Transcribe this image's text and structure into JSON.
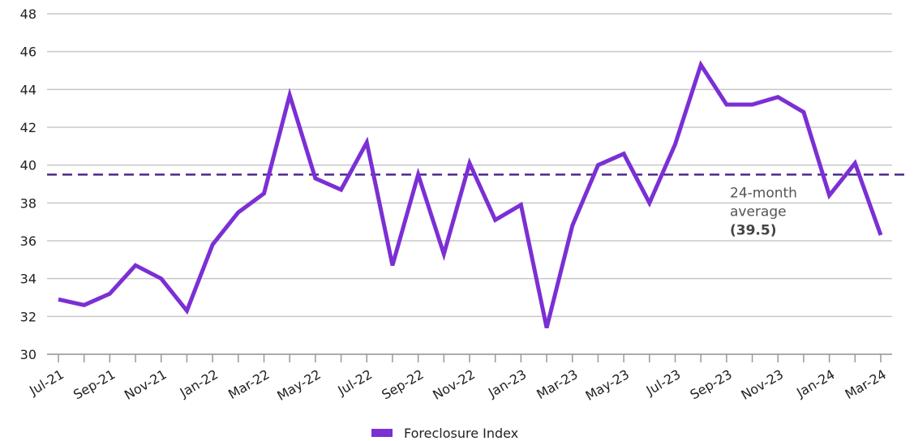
{
  "chart_data": {
    "type": "line",
    "categories": [
      "Jul-21",
      null,
      "Sep-21",
      null,
      "Nov-21",
      null,
      "Jan-22",
      null,
      "Mar-22",
      null,
      "May-22",
      null,
      "Jul-22",
      null,
      "Sep-22",
      null,
      "Nov-22",
      null,
      "Jan-23",
      null,
      "Mar-23",
      null,
      "May-23",
      null,
      "Jul-23",
      null,
      "Sep-23",
      null,
      "Nov-23",
      null,
      "Jan-24",
      null,
      "Mar-24"
    ],
    "series": [
      {
        "name": "Foreclosure Index",
        "color": "#7b2fd4",
        "values": [
          32.9,
          32.6,
          33.2,
          34.7,
          34.0,
          32.3,
          35.8,
          37.5,
          38.5,
          43.7,
          39.3,
          38.7,
          41.2,
          34.7,
          39.5,
          35.3,
          40.1,
          37.1,
          37.9,
          31.4,
          36.8,
          40.0,
          40.6,
          38.0,
          41.1,
          45.3,
          43.2,
          43.2,
          43.6,
          42.8,
          38.4,
          40.1,
          36.3
        ]
      }
    ],
    "ylim": [
      30,
      48
    ],
    "yticks": [
      30,
      32,
      34,
      36,
      38,
      40,
      42,
      44,
      46,
      48
    ],
    "grid": true,
    "average_line": {
      "value": 39.5,
      "color": "#4b2a8a",
      "text_lines": [
        "24-month",
        "average"
      ],
      "label": "(39.5)"
    },
    "legend": "bottom"
  }
}
